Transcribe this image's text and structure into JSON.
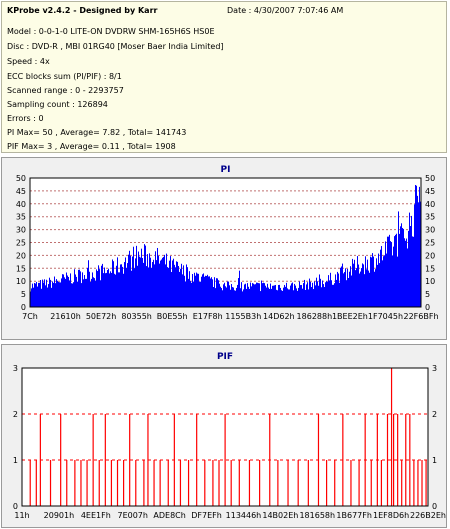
{
  "header": {
    "title": "KProbe v2.4.2 - Designed by Karr",
    "date": "Date : 4/30/2007 7:07:46 AM",
    "lines": [
      "Model : 0-0-1-0 LITE-ON DVDRW SHM-165H6S HS0E",
      "Disc : DVD-R , MBI 01RG40 [Moser Baer India Limited]",
      "Speed : 4x",
      "ECC blocks sum (PI/PIF) : 8/1",
      "Scanned range : 0 - 2293757",
      "Sampling count : 126894",
      "Errors : 0",
      "PI Max= 50 , Average= 7.82 , Total= 141743",
      "PIF Max= 3 , Average= 0.11 , Total= 1908"
    ]
  },
  "colors": {
    "bar": "#0000ff",
    "pif_bar": "#ff0000",
    "grid_pi": "#c07070",
    "grid_pif": "#ff0000",
    "plot_bg": "#ffffff",
    "panel_bg": "#f0f0f0"
  },
  "chart_data": [
    {
      "type": "bar",
      "title": "PI",
      "ylim": [
        0,
        50
      ],
      "yticks": [
        "0",
        "5",
        "10",
        "15",
        "20",
        "25",
        "30",
        "35",
        "40",
        "45",
        "50"
      ],
      "xticks": [
        "7Ch",
        "21610h",
        "50E72h",
        "80355h",
        "B0E55h",
        "E17F8h",
        "1155B3h",
        "14D62h",
        "186288h",
        "1BEE2Eh",
        "1F7045h",
        "22F6BFh"
      ],
      "profile_x": [
        0,
        0.04,
        0.12,
        0.2,
        0.28,
        0.32,
        0.4,
        0.5,
        0.6,
        0.68,
        0.72,
        0.76,
        0.8,
        0.84,
        0.88,
        0.9,
        0.93,
        0.96,
        0.98,
        1.0
      ],
      "profile_y": [
        8,
        9,
        12,
        14,
        20,
        19,
        13,
        8,
        8,
        8,
        9,
        10,
        13,
        16,
        18,
        20,
        24,
        28,
        34,
        46
      ],
      "max": 50,
      "average": 7.82,
      "total": 141743
    },
    {
      "type": "bar",
      "title": "PIF",
      "ylim": [
        0,
        3
      ],
      "yticks": [
        "0",
        "1",
        "2",
        "3"
      ],
      "xticks": [
        "11h",
        "20901h",
        "4EE1Fh",
        "7E007h",
        "ADE8Ch",
        "DF7EFh",
        "113446h",
        "14B02Eh",
        "181658h",
        "1B677Fh",
        "1EF8D6h",
        "226B2Eh"
      ],
      "spikes": [
        [
          0.02,
          1
        ],
        [
          0.035,
          1
        ],
        [
          0.045,
          2
        ],
        [
          0.07,
          1
        ],
        [
          0.095,
          2
        ],
        [
          0.11,
          1
        ],
        [
          0.13,
          1
        ],
        [
          0.145,
          1
        ],
        [
          0.16,
          1
        ],
        [
          0.175,
          2
        ],
        [
          0.19,
          1
        ],
        [
          0.205,
          2
        ],
        [
          0.22,
          1
        ],
        [
          0.235,
          1
        ],
        [
          0.25,
          1
        ],
        [
          0.265,
          2
        ],
        [
          0.28,
          1
        ],
        [
          0.3,
          1
        ],
        [
          0.31,
          2
        ],
        [
          0.325,
          1
        ],
        [
          0.34,
          1
        ],
        [
          0.36,
          1
        ],
        [
          0.375,
          2
        ],
        [
          0.39,
          1
        ],
        [
          0.41,
          1
        ],
        [
          0.43,
          2
        ],
        [
          0.45,
          1
        ],
        [
          0.47,
          1
        ],
        [
          0.485,
          1
        ],
        [
          0.5,
          2
        ],
        [
          0.515,
          1
        ],
        [
          0.535,
          1
        ],
        [
          0.56,
          1
        ],
        [
          0.585,
          1
        ],
        [
          0.61,
          2
        ],
        [
          0.63,
          1
        ],
        [
          0.655,
          1
        ],
        [
          0.68,
          1
        ],
        [
          0.705,
          1
        ],
        [
          0.73,
          2
        ],
        [
          0.75,
          1
        ],
        [
          0.77,
          1
        ],
        [
          0.79,
          2
        ],
        [
          0.81,
          1
        ],
        [
          0.83,
          1
        ],
        [
          0.845,
          2
        ],
        [
          0.86,
          1
        ],
        [
          0.875,
          2
        ],
        [
          0.885,
          1
        ],
        [
          0.9,
          2
        ],
        [
          0.91,
          3
        ],
        [
          0.915,
          2
        ],
        [
          0.925,
          2
        ],
        [
          0.935,
          1
        ],
        [
          0.945,
          2
        ],
        [
          0.955,
          2
        ],
        [
          0.965,
          1
        ],
        [
          0.975,
          1
        ],
        [
          0.985,
          1
        ],
        [
          0.995,
          1
        ]
      ],
      "max": 3,
      "average": 0.11,
      "total": 1908
    }
  ]
}
